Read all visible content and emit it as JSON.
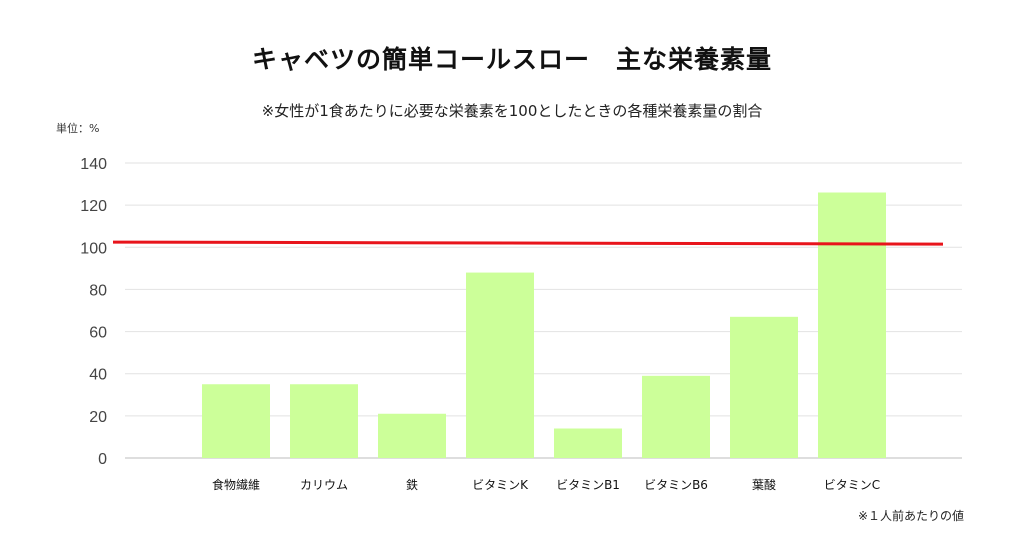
{
  "chart_data": {
    "type": "bar",
    "title": "キャベツの簡単コールスロー　主な栄養素量",
    "subtitle": "※女性が1食あたりに必要な栄養素を100としたときの各種栄養素量の割合",
    "ylabel": "単位：%",
    "footnote": "※１人前あたりの値",
    "categories": [
      "食物繊維",
      "カリウム",
      "鉄",
      "ビタミンK",
      "ビタミンB1",
      "ビタミンB6",
      "葉酸",
      "ビタミンC"
    ],
    "values": [
      35,
      35,
      21,
      88,
      14,
      39,
      67,
      126
    ],
    "yticks": [
      0,
      20,
      40,
      60,
      80,
      100,
      120,
      140
    ],
    "ylim": [
      0,
      140
    ],
    "reference_line": {
      "value": 102,
      "color": "#e8141b"
    },
    "bar_color": "#ccff99",
    "grid": true,
    "legend": "none"
  }
}
